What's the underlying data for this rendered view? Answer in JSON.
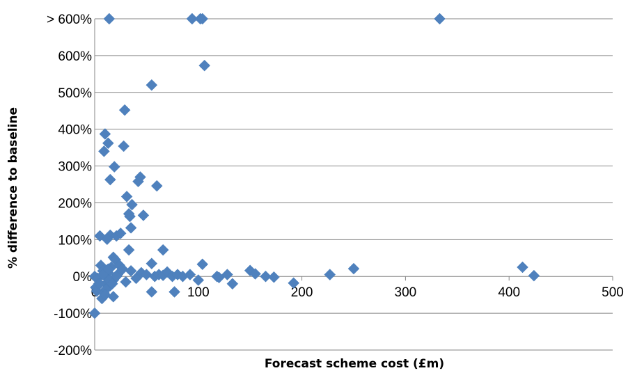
{
  "chart_data": {
    "type": "scatter",
    "title": "",
    "xlabel": "Forecast scheme cost (£m)",
    "ylabel": "% difference to baseline",
    "xlim": [
      0,
      500
    ],
    "ylim": [
      -200,
      700
    ],
    "x_ticks": [
      0,
      100,
      200,
      300,
      400,
      500
    ],
    "x_tick_labels": [
      "0",
      "100",
      "200",
      "300",
      "400",
      "500"
    ],
    "y_ticks": [
      -200,
      -100,
      0,
      100,
      200,
      300,
      400,
      500,
      600,
      700
    ],
    "y_tick_labels": [
      "-200%",
      "-100%",
      "0%",
      "100%",
      "200%",
      "300%",
      "400%",
      "500%",
      "600%",
      "> 600%"
    ],
    "grid": "horizontal",
    "legend": "none",
    "marker": "diamond",
    "color": "#4F81BD",
    "series": [
      {
        "x": [
          14,
          94,
          102,
          104,
          333,
          106,
          55,
          29,
          10,
          13,
          28,
          9,
          19,
          44,
          42,
          60,
          15,
          31,
          36,
          34,
          33,
          47,
          35,
          5,
          15,
          12,
          21,
          25,
          33,
          66,
          18,
          55,
          104,
          150,
          155,
          250,
          413,
          227,
          424,
          192,
          133,
          0,
          3,
          6,
          8,
          11,
          13,
          16,
          18,
          20,
          22,
          24,
          27,
          30,
          35,
          40,
          45,
          50,
          58,
          62,
          66,
          70,
          75,
          80,
          85,
          92,
          100,
          118,
          120,
          128,
          165,
          173,
          1,
          2,
          4,
          7,
          9,
          12,
          15,
          17,
          21,
          5,
          8,
          11,
          14,
          17,
          10,
          13,
          55,
          77,
          18,
          0
        ],
        "y": [
          700,
          700,
          700,
          700,
          700,
          573,
          520,
          452,
          387,
          362,
          354,
          340,
          298,
          270,
          258,
          246,
          263,
          217,
          195,
          163,
          170,
          166,
          132,
          110,
          112,
          101,
          110,
          117,
          72,
          72,
          52,
          35,
          33,
          16,
          7,
          21,
          25,
          5,
          2,
          -18,
          -20,
          0,
          -5,
          30,
          15,
          -20,
          10,
          25,
          -10,
          45,
          5,
          30,
          20,
          -15,
          15,
          -5,
          10,
          5,
          0,
          5,
          3,
          12,
          0,
          5,
          0,
          5,
          -10,
          0,
          -3,
          5,
          0,
          -2,
          -30,
          -40,
          -20,
          -60,
          -45,
          -5,
          -25,
          -10,
          0,
          -20,
          5,
          -35,
          -10,
          -20,
          -50,
          20,
          -42,
          -42,
          -55,
          -100
        ]
      }
    ]
  }
}
